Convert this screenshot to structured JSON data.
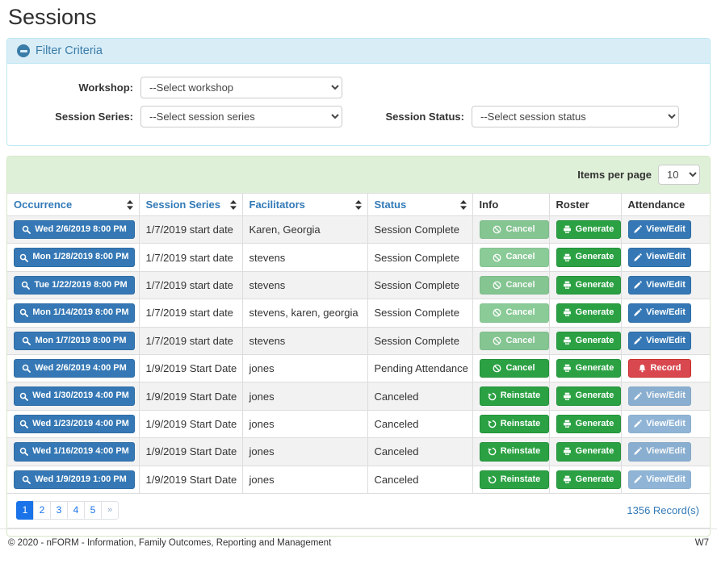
{
  "page": {
    "title": "Sessions"
  },
  "colors": {
    "link_blue": "#337ab7",
    "filter_header_bg": "#d9edf7",
    "filter_border": "#bce8f1",
    "table_header_bg": "#dff0d8",
    "table_border": "#d6e9c6",
    "btn_primary": "#3578b5",
    "btn_success": "#2ba143",
    "btn_danger": "#d9484f",
    "pagination_active": "#1a73e8",
    "row_stripe": "#f2f2f2"
  },
  "filter": {
    "title": "Filter Criteria",
    "collapse_icon": "minus-circle-icon",
    "workshop": {
      "label": "Workshop:",
      "value": "--Select workshop"
    },
    "session_series": {
      "label": "Session Series:",
      "value": "--Select session series"
    },
    "session_status": {
      "label": "Session Status:",
      "value": "--Select session status"
    }
  },
  "table_panel": {
    "items_per_page_label": "Items per page",
    "items_per_page_value": "10",
    "columns": [
      {
        "label": "Occurrence",
        "sortable": true
      },
      {
        "label": "Session Series",
        "sortable": true
      },
      {
        "label": "Facilitators",
        "sortable": true
      },
      {
        "label": "Status",
        "sortable": true
      },
      {
        "label": "Info",
        "sortable": false
      },
      {
        "label": "Roster",
        "sortable": false
      },
      {
        "label": "Attendance",
        "sortable": false
      }
    ],
    "rows": [
      {
        "occurrence": "Wed 2/6/2019 8:00 PM",
        "series": "1/7/2019 start date",
        "facilitators": "Karen, Georgia",
        "info": {
          "label": "Cancel",
          "icon": "ban-icon",
          "style": "success",
          "disabled": true
        },
        "status": "Session Complete",
        "roster": {
          "label": "Generate",
          "icon": "printer-icon",
          "style": "success",
          "disabled": false
        },
        "attendance": {
          "label": "View/Edit",
          "icon": "pencil-icon",
          "style": "primary",
          "disabled": false
        }
      },
      {
        "occurrence": "Mon 1/28/2019 8:00 PM",
        "series": "1/7/2019 start date",
        "facilitators": "stevens",
        "status": "Session Complete",
        "info": {
          "label": "Cancel",
          "icon": "ban-icon",
          "style": "success",
          "disabled": true
        },
        "roster": {
          "label": "Generate",
          "icon": "printer-icon",
          "style": "success",
          "disabled": false
        },
        "attendance": {
          "label": "View/Edit",
          "icon": "pencil-icon",
          "style": "primary",
          "disabled": false
        }
      },
      {
        "occurrence": "Tue 1/22/2019 8:00 PM",
        "series": "1/7/2019 start date",
        "facilitators": "stevens",
        "status": "Session Complete",
        "info": {
          "label": "Cancel",
          "icon": "ban-icon",
          "style": "success",
          "disabled": true
        },
        "roster": {
          "label": "Generate",
          "icon": "printer-icon",
          "style": "success",
          "disabled": false
        },
        "attendance": {
          "label": "View/Edit",
          "icon": "pencil-icon",
          "style": "primary",
          "disabled": false
        }
      },
      {
        "occurrence": "Mon 1/14/2019 8:00 PM",
        "series": "1/7/2019 start date",
        "facilitators": "stevens, karen, georgia",
        "status": "Session Complete",
        "info": {
          "label": "Cancel",
          "icon": "ban-icon",
          "style": "success",
          "disabled": true
        },
        "roster": {
          "label": "Generate",
          "icon": "printer-icon",
          "style": "success",
          "disabled": false
        },
        "attendance": {
          "label": "View/Edit",
          "icon": "pencil-icon",
          "style": "primary",
          "disabled": false
        }
      },
      {
        "occurrence": "Mon 1/7/2019 8:00 PM",
        "series": "1/7/2019 start date",
        "facilitators": "stevens",
        "status": "Session Complete",
        "info": {
          "label": "Cancel",
          "icon": "ban-icon",
          "style": "success",
          "disabled": true
        },
        "roster": {
          "label": "Generate",
          "icon": "printer-icon",
          "style": "success",
          "disabled": false
        },
        "attendance": {
          "label": "View/Edit",
          "icon": "pencil-icon",
          "style": "primary",
          "disabled": false
        }
      },
      {
        "occurrence": "Wed 2/6/2019 4:00 PM",
        "series": "1/9/2019 Start Date",
        "facilitators": "jones",
        "status": "Pending Attendance",
        "info": {
          "label": "Cancel",
          "icon": "ban-icon",
          "style": "success",
          "disabled": false
        },
        "roster": {
          "label": "Generate",
          "icon": "printer-icon",
          "style": "success",
          "disabled": false
        },
        "attendance": {
          "label": "Record",
          "icon": "bell-icon",
          "style": "danger",
          "disabled": false
        }
      },
      {
        "occurrence": "Wed 1/30/2019 4:00 PM",
        "series": "1/9/2019 Start Date",
        "facilitators": "jones",
        "status": "Canceled",
        "info": {
          "label": "Reinstate",
          "icon": "undo-icon",
          "style": "success",
          "disabled": false
        },
        "roster": {
          "label": "Generate",
          "icon": "printer-icon",
          "style": "success",
          "disabled": false
        },
        "attendance": {
          "label": "View/Edit",
          "icon": "pencil-icon",
          "style": "primary",
          "disabled": true
        }
      },
      {
        "occurrence": "Wed 1/23/2019 4:00 PM",
        "series": "1/9/2019 Start Date",
        "facilitators": "jones",
        "status": "Canceled",
        "info": {
          "label": "Reinstate",
          "icon": "undo-icon",
          "style": "success",
          "disabled": false
        },
        "roster": {
          "label": "Generate",
          "icon": "printer-icon",
          "style": "success",
          "disabled": false
        },
        "attendance": {
          "label": "View/Edit",
          "icon": "pencil-icon",
          "style": "primary",
          "disabled": true
        }
      },
      {
        "occurrence": "Wed 1/16/2019 4:00 PM",
        "series": "1/9/2019 Start Date",
        "facilitators": "jones",
        "status": "Canceled",
        "info": {
          "label": "Reinstate",
          "icon": "undo-icon",
          "style": "success",
          "disabled": false
        },
        "roster": {
          "label": "Generate",
          "icon": "printer-icon",
          "style": "success",
          "disabled": false
        },
        "attendance": {
          "label": "View/Edit",
          "icon": "pencil-icon",
          "style": "primary",
          "disabled": true
        }
      },
      {
        "occurrence": "Wed 1/9/2019 1:00 PM",
        "series": "1/9/2019 Start Date",
        "facilitators": "jones",
        "status": "Canceled",
        "info": {
          "label": "Reinstate",
          "icon": "undo-icon",
          "style": "success",
          "disabled": false
        },
        "roster": {
          "label": "Generate",
          "icon": "printer-icon",
          "style": "success",
          "disabled": false
        },
        "attendance": {
          "label": "View/Edit",
          "icon": "pencil-icon",
          "style": "primary",
          "disabled": true
        }
      }
    ],
    "occurrence_icon": "search-icon",
    "pagination": {
      "pages": [
        "1",
        "2",
        "3",
        "4",
        "5",
        "»"
      ],
      "active_index": 0
    },
    "records_text": "1356 Record(s)"
  },
  "footer": {
    "copyright": "© 2020 - nFORM - Information, Family Outcomes, Reporting and Management",
    "environment": "W7"
  }
}
